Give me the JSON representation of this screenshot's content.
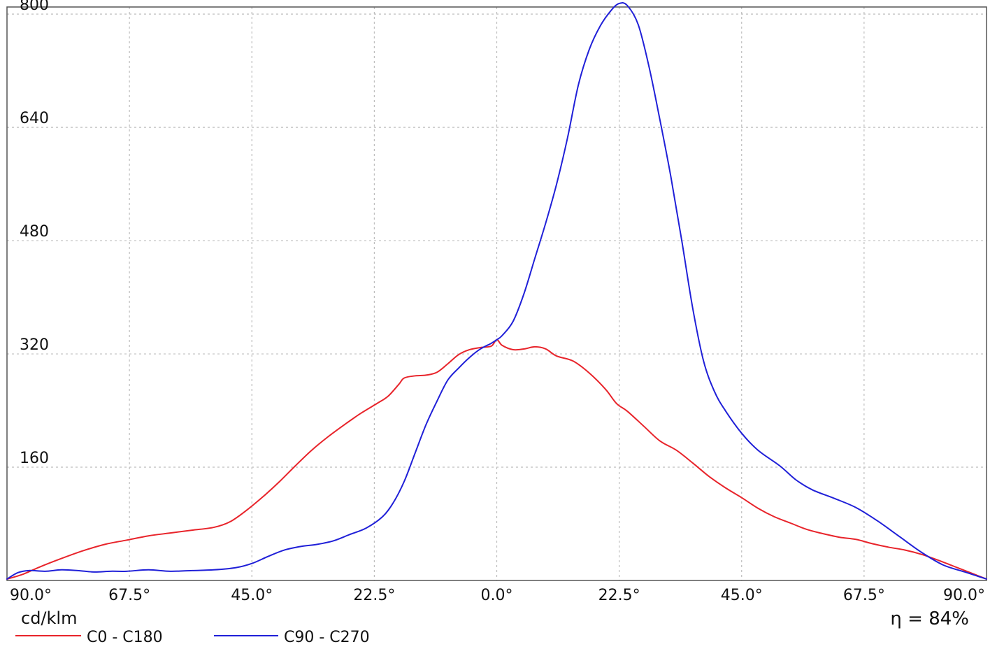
{
  "chart_data": {
    "type": "line",
    "unit_label": "cd/klm",
    "efficiency_label": "η = 84%",
    "yticks": [
      160,
      320,
      480,
      640,
      800
    ],
    "ylim": [
      0,
      810
    ],
    "xlim": [
      -90,
      90
    ],
    "xticks": [
      {
        "value": -90,
        "label": "90.0°"
      },
      {
        "value": -67.5,
        "label": "67.5°"
      },
      {
        "value": -45,
        "label": "45.0°"
      },
      {
        "value": -22.5,
        "label": "22.5°"
      },
      {
        "value": 0,
        "label": "0.0°"
      },
      {
        "value": 22.5,
        "label": "22.5°"
      },
      {
        "value": 45,
        "label": "45.0°"
      },
      {
        "value": 67.5,
        "label": "67.5°"
      },
      {
        "value": 90,
        "label": "90.0°"
      }
    ],
    "grid": true,
    "legend_position": "bottom-left",
    "series": [
      {
        "name": "C0 - C180",
        "color": "#e8242b",
        "points": [
          [
            -90,
            2
          ],
          [
            -87,
            9
          ],
          [
            -84,
            19
          ],
          [
            -80,
            31
          ],
          [
            -76,
            42
          ],
          [
            -72,
            51
          ],
          [
            -68,
            57
          ],
          [
            -64,
            63
          ],
          [
            -60,
            67
          ],
          [
            -56,
            71
          ],
          [
            -52,
            75
          ],
          [
            -49,
            83
          ],
          [
            -46,
            99
          ],
          [
            -43,
            118
          ],
          [
            -40,
            139
          ],
          [
            -37,
            162
          ],
          [
            -34,
            184
          ],
          [
            -31,
            203
          ],
          [
            -28,
            220
          ],
          [
            -25,
            236
          ],
          [
            -22,
            250
          ],
          [
            -20,
            260
          ],
          [
            -18,
            277
          ],
          [
            -17,
            286
          ],
          [
            -15,
            289
          ],
          [
            -13,
            290
          ],
          [
            -11,
            294
          ],
          [
            -9,
            306
          ],
          [
            -7,
            319
          ],
          [
            -5,
            326
          ],
          [
            -3,
            329
          ],
          [
            -1,
            331
          ],
          [
            0,
            340
          ],
          [
            1,
            332
          ],
          [
            3,
            326
          ],
          [
            5,
            327
          ],
          [
            7,
            330
          ],
          [
            9,
            327
          ],
          [
            11,
            317
          ],
          [
            14,
            310
          ],
          [
            17,
            293
          ],
          [
            20,
            270
          ],
          [
            22,
            250
          ],
          [
            24,
            239
          ],
          [
            27,
            218
          ],
          [
            30,
            197
          ],
          [
            33,
            184
          ],
          [
            36,
            166
          ],
          [
            39,
            147
          ],
          [
            42,
            131
          ],
          [
            45,
            117
          ],
          [
            48,
            102
          ],
          [
            51,
            90
          ],
          [
            54,
            81
          ],
          [
            57,
            72
          ],
          [
            60,
            66
          ],
          [
            63,
            61
          ],
          [
            66,
            58
          ],
          [
            69,
            52
          ],
          [
            72,
            47
          ],
          [
            75,
            43
          ],
          [
            78,
            37
          ],
          [
            81,
            29
          ],
          [
            84,
            20
          ],
          [
            87,
            11
          ],
          [
            90,
            2
          ]
        ]
      },
      {
        "name": "C90 - C270",
        "color": "#2020d8",
        "points": [
          [
            -90,
            2
          ],
          [
            -88,
            11
          ],
          [
            -86,
            14
          ],
          [
            -83,
            13
          ],
          [
            -80,
            15
          ],
          [
            -77,
            14
          ],
          [
            -74,
            12
          ],
          [
            -71,
            13
          ],
          [
            -68,
            13
          ],
          [
            -64,
            15
          ],
          [
            -60,
            13
          ],
          [
            -56,
            14
          ],
          [
            -52,
            15
          ],
          [
            -48,
            18
          ],
          [
            -45,
            24
          ],
          [
            -42,
            34
          ],
          [
            -39,
            43
          ],
          [
            -36,
            48
          ],
          [
            -33,
            51
          ],
          [
            -30,
            56
          ],
          [
            -27,
            65
          ],
          [
            -24,
            74
          ],
          [
            -21,
            90
          ],
          [
            -19,
            110
          ],
          [
            -17,
            140
          ],
          [
            -15,
            180
          ],
          [
            -13,
            220
          ],
          [
            -11,
            253
          ],
          [
            -9,
            283
          ],
          [
            -7,
            300
          ],
          [
            -5,
            315
          ],
          [
            -3,
            327
          ],
          [
            -1,
            335
          ],
          [
            0,
            340
          ],
          [
            1,
            346
          ],
          [
            3,
            366
          ],
          [
            5,
            405
          ],
          [
            7,
            455
          ],
          [
            9,
            505
          ],
          [
            11,
            560
          ],
          [
            13,
            625
          ],
          [
            15,
            700
          ],
          [
            17,
            750
          ],
          [
            19,
            783
          ],
          [
            21,
            805
          ],
          [
            22.5,
            815
          ],
          [
            24,
            812
          ],
          [
            26,
            785
          ],
          [
            28,
            725
          ],
          [
            30,
            650
          ],
          [
            32,
            570
          ],
          [
            34,
            480
          ],
          [
            36,
            385
          ],
          [
            38,
            310
          ],
          [
            40,
            267
          ],
          [
            42,
            240
          ],
          [
            45,
            208
          ],
          [
            48,
            184
          ],
          [
            52,
            162
          ],
          [
            55,
            142
          ],
          [
            58,
            128
          ],
          [
            62,
            116
          ],
          [
            66,
            103
          ],
          [
            70,
            84
          ],
          [
            74,
            62
          ],
          [
            78,
            40
          ],
          [
            82,
            22
          ],
          [
            86,
            12
          ],
          [
            90,
            2
          ]
        ]
      }
    ]
  }
}
